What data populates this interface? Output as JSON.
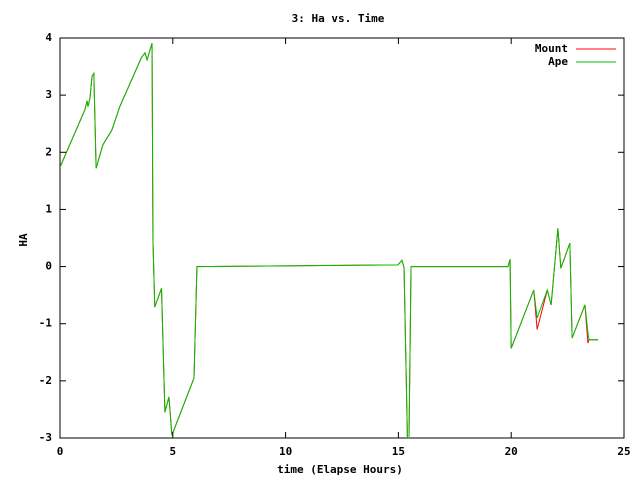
{
  "chart_data": {
    "type": "line",
    "title": "3: Ha vs. Time",
    "x_label": "time (Elapse Hours)",
    "y_label": "HA",
    "x": [
      0,
      0.66,
      1.1,
      1.2,
      1.24,
      1.33,
      1.42,
      1.5,
      1.6,
      1.9,
      2.3,
      2.66,
      3.1,
      3.6,
      3.77,
      3.86,
      4.08,
      4.12,
      4.2,
      4.5,
      4.65,
      4.83,
      4.96,
      5.94,
      6.07,
      14.98,
      15.16,
      15.25,
      15.4,
      15.47,
      15.56,
      19.86,
      19.95,
      20,
      21,
      21.15,
      21.6,
      21.77,
      22.07,
      22.2,
      22.6,
      22.7,
      23.27,
      23.4,
      23.45,
      23.85
    ],
    "series": [
      {
        "name": "Mount",
        "color": "#ff0000",
        "values": [
          1.74,
          2.34,
          2.74,
          2.9,
          2.8,
          2.95,
          3.33,
          3.38,
          1.72,
          2.13,
          2.39,
          2.81,
          3.2,
          3.65,
          3.74,
          3.62,
          3.91,
          0.46,
          -0.71,
          -0.38,
          -2.55,
          -2.28,
          -2.95,
          -1.95,
          0,
          0.03,
          0.11,
          -0.02,
          -3,
          -3,
          0,
          0,
          0.13,
          -1.43,
          -0.41,
          -1.1,
          -0.41,
          -0.67,
          0.67,
          -0.03,
          0.41,
          -1.25,
          -0.67,
          -1.34,
          -1.28,
          -1.28
        ]
      },
      {
        "name": "Ape",
        "color": "#00c000",
        "values": [
          1.74,
          2.34,
          2.74,
          2.9,
          2.8,
          2.95,
          3.33,
          3.38,
          1.72,
          2.13,
          2.39,
          2.81,
          3.2,
          3.65,
          3.74,
          3.62,
          3.91,
          0.46,
          -0.71,
          -0.38,
          -2.55,
          -2.28,
          -2.95,
          -1.95,
          0,
          0.03,
          0.11,
          -0.02,
          -3,
          -3,
          0,
          0,
          0.13,
          -1.43,
          -0.41,
          -0.9,
          -0.41,
          -0.67,
          0.67,
          -0.03,
          0.41,
          -1.25,
          -0.67,
          -1.15,
          -1.28,
          -1.28
        ]
      }
    ],
    "xlim": [
      0,
      25
    ],
    "xticks": [
      0,
      5,
      10,
      15,
      20,
      25
    ],
    "ylim": [
      -3,
      4
    ],
    "yticks": [
      -3,
      -2,
      -1,
      0,
      1,
      2,
      3,
      4
    ],
    "legend": "top-right"
  }
}
